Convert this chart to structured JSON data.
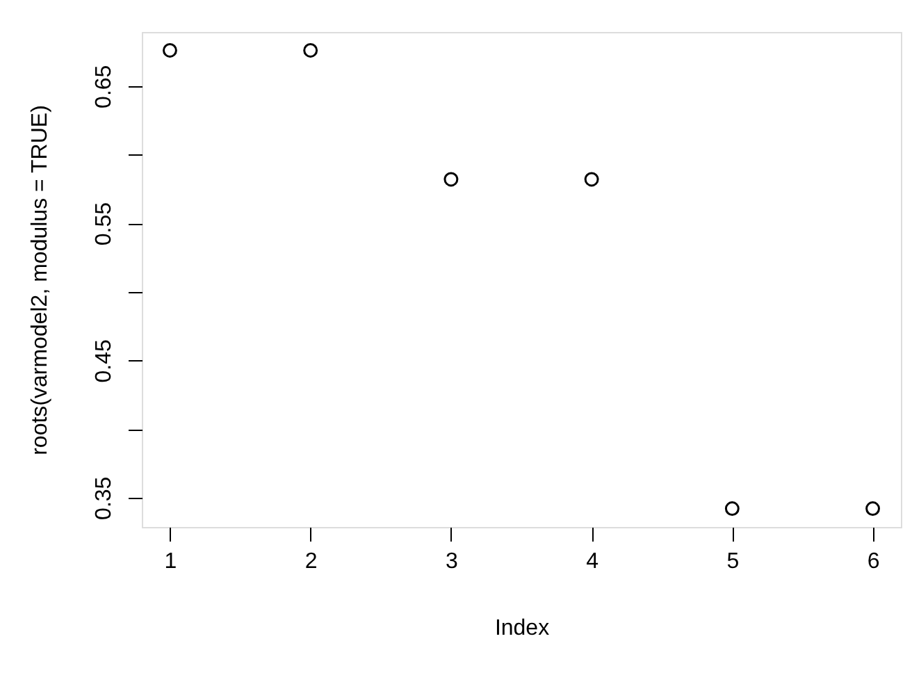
{
  "chart_data": {
    "type": "scatter",
    "xlabel": "Index",
    "ylabel": "roots(varmodel2, modulus = TRUE)",
    "x": [
      1,
      2,
      3,
      4,
      5,
      6
    ],
    "series": [
      {
        "color": "#000000",
        "values": [
          0.676,
          0.676,
          0.582,
          0.582,
          0.342,
          0.342
        ]
      }
    ],
    "xlim": [
      0.8,
      6.2
    ],
    "ylim": [
      0.3286,
      0.6894
    ],
    "xticks": [
      1,
      2,
      3,
      4,
      5,
      6
    ],
    "yticks": [
      0.35,
      {
        "value": 0.4,
        "label": null
      },
      0.45,
      {
        "value": 0.5,
        "label": null
      },
      0.55,
      {
        "value": 0.6,
        "label": null
      },
      0.65
    ],
    "marker": "circle",
    "grid": false
  }
}
